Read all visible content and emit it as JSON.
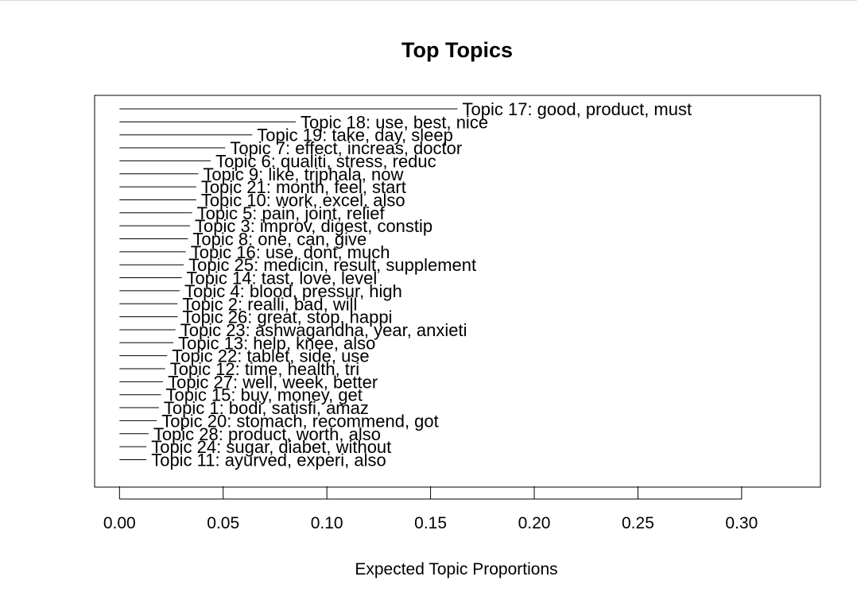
{
  "chart_data": {
    "type": "bar",
    "orientation": "horizontal",
    "title": "Top Topics",
    "xlabel": "Expected Topic Proportions",
    "ylabel": "",
    "xlim": [
      -0.012,
      0.338
    ],
    "xticks": [
      "0.00",
      "0.05",
      "0.10",
      "0.15",
      "0.20",
      "0.25",
      "0.30"
    ],
    "tick_values": [
      0,
      0.05,
      0.1,
      0.15,
      0.2,
      0.25,
      0.3
    ],
    "grid": false,
    "legend": "none",
    "line_color": "#000000",
    "categories": [
      "Topic 17: good, product, must",
      "Topic 18: use, best, nice",
      "Topic 19: take, day, sleep",
      "Topic 7: effect, increas, doctor",
      "Topic 6: qualiti, stress, reduc",
      "Topic 9: like, triphala, now",
      "Topic 21: month, feel, start",
      "Topic 10: work, excel, also",
      "Topic 5: pain, joint, relief",
      "Topic 3: improv, digest, constip",
      "Topic 8: one, can, give",
      "Topic 16: use, dont, much",
      "Topic 25: medicin, result, supplement",
      "Topic 14: tast, love, level",
      "Topic 4: blood, pressur, high",
      "Topic 2: realli, bad, will",
      "Topic 26: great, stop, happi",
      "Topic 23: ashwagandha, year, anxieti",
      "Topic 13: help, knee, also",
      "Topic 22: tablet, side, use",
      "Topic 12: time, health, tri",
      "Topic 27: well, week, better",
      "Topic 15: buy, money, get",
      "Topic 1: bodi, satisfi, amaz",
      "Topic 20: stomach, recommend, got",
      "Topic 28: product, worth, also",
      "Topic 24: sugar, diabet, without",
      "Topic 11: ayurved, experi, also"
    ],
    "values": [
      0.163,
      0.085,
      0.064,
      0.051,
      0.044,
      0.038,
      0.037,
      0.037,
      0.035,
      0.034,
      0.033,
      0.032,
      0.031,
      0.03,
      0.029,
      0.028,
      0.028,
      0.027,
      0.026,
      0.023,
      0.022,
      0.021,
      0.02,
      0.019,
      0.018,
      0.014,
      0.013,
      0.013
    ]
  }
}
